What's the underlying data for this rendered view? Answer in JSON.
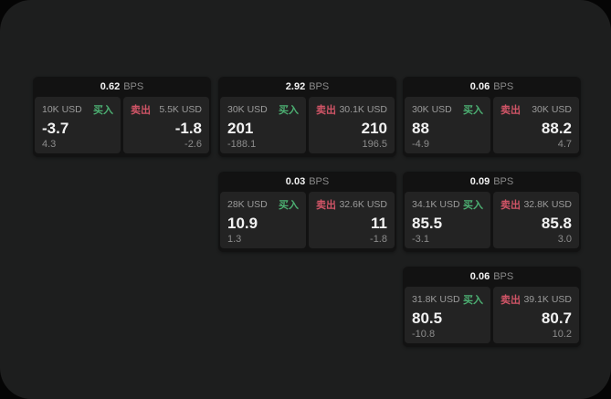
{
  "labels": {
    "bps_unit": "BPS",
    "buy": "买入",
    "sell": "卖出"
  },
  "colors": {
    "buy_green": "#4caf72",
    "sell_red": "#cf5466",
    "window_bg": "#1d1e1e",
    "card_bg": "#121212",
    "panel_bg": "#232323"
  },
  "cards": [
    {
      "bps": "0.62",
      "buy": {
        "size": "10K USD",
        "price": "-3.7",
        "delta": "4.3"
      },
      "sell": {
        "size": "5.5K USD",
        "price": "-1.8",
        "delta": "-2.6"
      }
    },
    {
      "bps": "2.92",
      "buy": {
        "size": "30K USD",
        "price": "201",
        "delta": "-188.1"
      },
      "sell": {
        "size": "30.1K USD",
        "price": "210",
        "delta": "196.5"
      }
    },
    {
      "bps": "0.06",
      "buy": {
        "size": "30K USD",
        "price": "88",
        "delta": "-4.9"
      },
      "sell": {
        "size": "30K USD",
        "price": "88.2",
        "delta": "4.7"
      }
    },
    {
      "bps": "0.03",
      "buy": {
        "size": "28K USD",
        "price": "10.9",
        "delta": "1.3"
      },
      "sell": {
        "size": "32.6K USD",
        "price": "11",
        "delta": "-1.8"
      }
    },
    {
      "bps": "0.09",
      "buy": {
        "size": "34.1K USD",
        "price": "85.5",
        "delta": "-3.1"
      },
      "sell": {
        "size": "32.8K USD",
        "price": "85.8",
        "delta": "3.0"
      }
    },
    {
      "bps": "0.06",
      "buy": {
        "size": "31.8K USD",
        "price": "80.5",
        "delta": "-10.8"
      },
      "sell": {
        "size": "39.1K USD",
        "price": "80.7",
        "delta": "10.2"
      }
    }
  ]
}
